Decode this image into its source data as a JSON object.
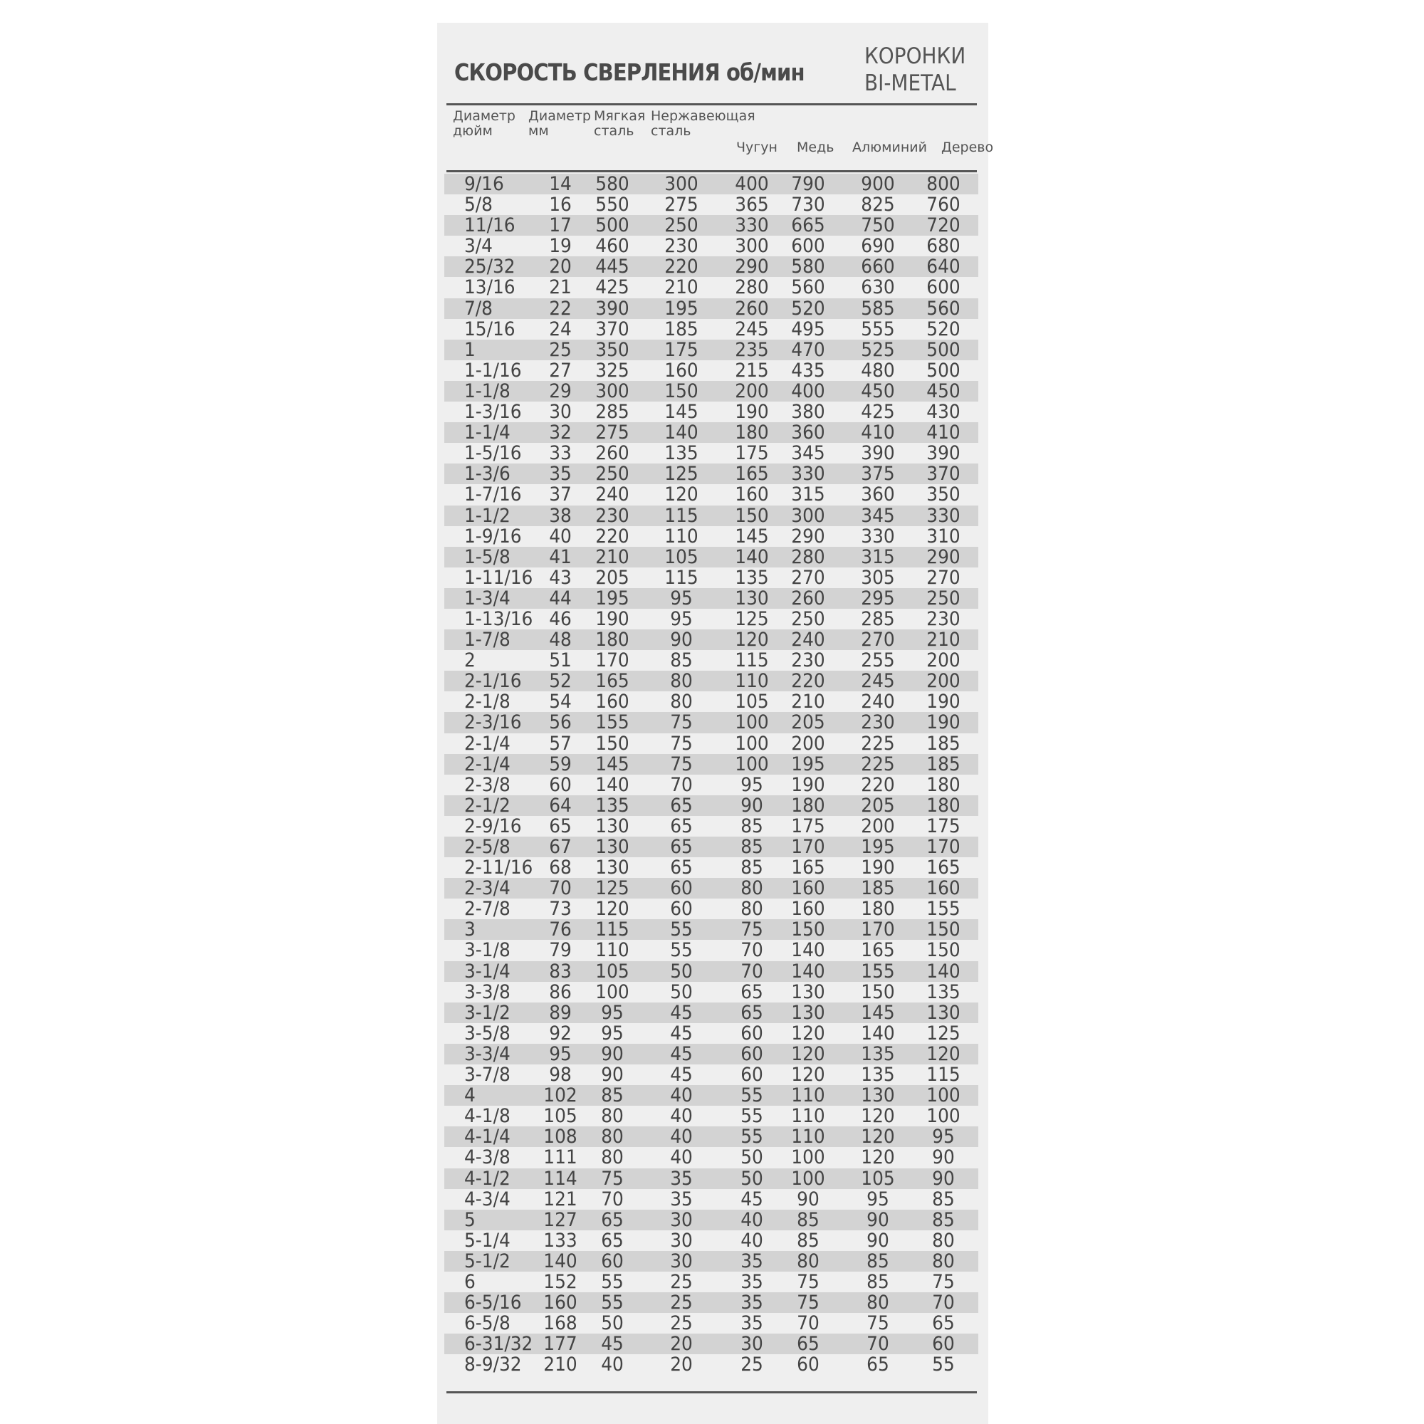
{
  "title": "СКОРОСТЬ СВЕРЛЕНИЯ об/мин",
  "brand": {
    "line1": "КОРОНКИ",
    "line2": "BI-METAL"
  },
  "headers": [
    {
      "l1": "Диаметр",
      "l2": "дюйм"
    },
    {
      "l1": "Диаметр",
      "l2": "мм"
    },
    {
      "l1": "Мягкая",
      "l2": "сталь"
    },
    {
      "l1": "Нержавеющая",
      "l2": "сталь"
    },
    {
      "l1": "",
      "l2": "Чугун"
    },
    {
      "l1": "",
      "l2": "Медь"
    },
    {
      "l1": "",
      "l2": "Алюминий"
    },
    {
      "l1": "",
      "l2": "Дерево"
    }
  ],
  "rows": [
    [
      "9/16",
      "14",
      "580",
      "300",
      "400",
      "790",
      "900",
      "800"
    ],
    [
      "5/8",
      "16",
      "550",
      "275",
      "365",
      "730",
      "825",
      "760"
    ],
    [
      "11/16",
      "17",
      "500",
      "250",
      "330",
      "665",
      "750",
      "720"
    ],
    [
      "3/4",
      "19",
      "460",
      "230",
      "300",
      "600",
      "690",
      "680"
    ],
    [
      "25/32",
      "20",
      "445",
      "220",
      "290",
      "580",
      "660",
      "640"
    ],
    [
      "13/16",
      "21",
      "425",
      "210",
      "280",
      "560",
      "630",
      "600"
    ],
    [
      "7/8",
      "22",
      "390",
      "195",
      "260",
      "520",
      "585",
      "560"
    ],
    [
      "15/16",
      "24",
      "370",
      "185",
      "245",
      "495",
      "555",
      "520"
    ],
    [
      "1",
      "25",
      "350",
      "175",
      "235",
      "470",
      "525",
      "500"
    ],
    [
      "1-1/16",
      "27",
      "325",
      "160",
      "215",
      "435",
      "480",
      "500"
    ],
    [
      "1-1/8",
      "29",
      "300",
      "150",
      "200",
      "400",
      "450",
      "450"
    ],
    [
      "1-3/16",
      "30",
      "285",
      "145",
      "190",
      "380",
      "425",
      "430"
    ],
    [
      "1-1/4",
      "32",
      "275",
      "140",
      "180",
      "360",
      "410",
      "410"
    ],
    [
      "1-5/16",
      "33",
      "260",
      "135",
      "175",
      "345",
      "390",
      "390"
    ],
    [
      "1-3/6",
      "35",
      "250",
      "125",
      "165",
      "330",
      "375",
      "370"
    ],
    [
      "1-7/16",
      "37",
      "240",
      "120",
      "160",
      "315",
      "360",
      "350"
    ],
    [
      "1-1/2",
      "38",
      "230",
      "115",
      "150",
      "300",
      "345",
      "330"
    ],
    [
      "1-9/16",
      "40",
      "220",
      "110",
      "145",
      "290",
      "330",
      "310"
    ],
    [
      "1-5/8",
      "41",
      "210",
      "105",
      "140",
      "280",
      "315",
      "290"
    ],
    [
      "1-11/16",
      "43",
      "205",
      "115",
      "135",
      "270",
      "305",
      "270"
    ],
    [
      "1-3/4",
      "44",
      "195",
      "95",
      "130",
      "260",
      "295",
      "250"
    ],
    [
      "1-13/16",
      "46",
      "190",
      "95",
      "125",
      "250",
      "285",
      "230"
    ],
    [
      "1-7/8",
      "48",
      "180",
      "90",
      "120",
      "240",
      "270",
      "210"
    ],
    [
      "2",
      "51",
      "170",
      "85",
      "115",
      "230",
      "255",
      "200"
    ],
    [
      "2-1/16",
      "52",
      "165",
      "80",
      "110",
      "220",
      "245",
      "200"
    ],
    [
      "2-1/8",
      "54",
      "160",
      "80",
      "105",
      "210",
      "240",
      "190"
    ],
    [
      "2-3/16",
      "56",
      "155",
      "75",
      "100",
      "205",
      "230",
      "190"
    ],
    [
      "2-1/4",
      "57",
      "150",
      "75",
      "100",
      "200",
      "225",
      "185"
    ],
    [
      "2-1/4",
      "59",
      "145",
      "75",
      "100",
      "195",
      "225",
      "185"
    ],
    [
      "2-3/8",
      "60",
      "140",
      "70",
      "95",
      "190",
      "220",
      "180"
    ],
    [
      "2-1/2",
      "64",
      "135",
      "65",
      "90",
      "180",
      "205",
      "180"
    ],
    [
      "2-9/16",
      "65",
      "130",
      "65",
      "85",
      "175",
      "200",
      "175"
    ],
    [
      "2-5/8",
      "67",
      "130",
      "65",
      "85",
      "170",
      "195",
      "170"
    ],
    [
      "2-11/16",
      "68",
      "130",
      "65",
      "85",
      "165",
      "190",
      "165"
    ],
    [
      "2-3/4",
      "70",
      "125",
      "60",
      "80",
      "160",
      "185",
      "160"
    ],
    [
      "2-7/8",
      "73",
      "120",
      "60",
      "80",
      "160",
      "180",
      "155"
    ],
    [
      "3",
      "76",
      "115",
      "55",
      "75",
      "150",
      "170",
      "150"
    ],
    [
      "3-1/8",
      "79",
      "110",
      "55",
      "70",
      "140",
      "165",
      "150"
    ],
    [
      "3-1/4",
      "83",
      "105",
      "50",
      "70",
      "140",
      "155",
      "140"
    ],
    [
      "3-3/8",
      "86",
      "100",
      "50",
      "65",
      "130",
      "150",
      "135"
    ],
    [
      "3-1/2",
      "89",
      "95",
      "45",
      "65",
      "130",
      "145",
      "130"
    ],
    [
      "3-5/8",
      "92",
      "95",
      "45",
      "60",
      "120",
      "140",
      "125"
    ],
    [
      "3-3/4",
      "95",
      "90",
      "45",
      "60",
      "120",
      "135",
      "120"
    ],
    [
      "3-7/8",
      "98",
      "90",
      "45",
      "60",
      "120",
      "135",
      "115"
    ],
    [
      "4",
      "102",
      "85",
      "40",
      "55",
      "110",
      "130",
      "100"
    ],
    [
      "4-1/8",
      "105",
      "80",
      "40",
      "55",
      "110",
      "120",
      "100"
    ],
    [
      "4-1/4",
      "108",
      "80",
      "40",
      "55",
      "110",
      "120",
      "95"
    ],
    [
      "4-3/8",
      "111",
      "80",
      "40",
      "50",
      "100",
      "120",
      "90"
    ],
    [
      "4-1/2",
      "114",
      "75",
      "35",
      "50",
      "100",
      "105",
      "90"
    ],
    [
      "4-3/4",
      "121",
      "70",
      "35",
      "45",
      "90",
      "95",
      "85"
    ],
    [
      "5",
      "127",
      "65",
      "30",
      "40",
      "85",
      "90",
      "85"
    ],
    [
      "5-1/4",
      "133",
      "65",
      "30",
      "40",
      "85",
      "90",
      "80"
    ],
    [
      "5-1/2",
      "140",
      "60",
      "30",
      "35",
      "80",
      "85",
      "80"
    ],
    [
      "6",
      "152",
      "55",
      "25",
      "35",
      "75",
      "85",
      "75"
    ],
    [
      "6-5/16",
      "160",
      "55",
      "25",
      "35",
      "75",
      "80",
      "70"
    ],
    [
      "6-5/8",
      "168",
      "50",
      "25",
      "35",
      "70",
      "75",
      "65"
    ],
    [
      "6-31/32",
      "177",
      "45",
      "20",
      "30",
      "65",
      "70",
      "60"
    ],
    [
      "8-9/32",
      "210",
      "40",
      "20",
      "25",
      "60",
      "65",
      "55"
    ]
  ],
  "colors": {
    "paper": "#efefef",
    "row_shade": "#d3d3d3",
    "text": "#444444",
    "rule": "#555555"
  }
}
